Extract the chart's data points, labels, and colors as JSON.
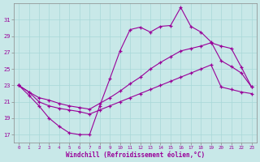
{
  "xlabel": "Windchill (Refroidissement éolien,°C)",
  "background_color": "#c8e8e8",
  "grid_color": "#a8d8d8",
  "line_color": "#990099",
  "xlim": [
    -0.5,
    23.5
  ],
  "ylim": [
    16.0,
    33.0
  ],
  "yticks": [
    17,
    19,
    21,
    23,
    25,
    27,
    29,
    31
  ],
  "xticks": [
    0,
    1,
    2,
    3,
    4,
    5,
    6,
    7,
    8,
    9,
    10,
    11,
    12,
    13,
    14,
    15,
    16,
    17,
    18,
    19,
    20,
    21,
    22,
    23
  ],
  "line1_x": [
    0,
    1,
    2,
    3,
    4,
    5,
    6,
    7,
    8,
    9,
    10,
    11,
    12,
    13,
    14,
    15,
    16,
    17,
    18,
    19,
    20,
    21,
    22,
    23
  ],
  "line1_y": [
    23.0,
    21.8,
    20.5,
    19.0,
    18.0,
    17.2,
    17.0,
    17.0,
    20.5,
    23.8,
    27.2,
    29.8,
    30.1,
    29.5,
    30.2,
    30.3,
    32.5,
    30.2,
    29.5,
    28.3,
    26.0,
    25.3,
    24.5,
    22.8
  ],
  "line2_x": [
    0,
    1,
    2,
    3,
    4,
    5,
    6,
    7,
    8,
    9,
    10,
    11,
    12,
    13,
    14,
    15,
    16,
    17,
    18,
    19,
    20,
    21,
    22,
    23
  ],
  "line2_y": [
    23.0,
    22.2,
    21.5,
    21.2,
    20.8,
    20.5,
    20.3,
    20.1,
    20.8,
    21.5,
    22.3,
    23.2,
    24.0,
    25.0,
    25.8,
    26.5,
    27.2,
    27.5,
    27.8,
    28.2,
    27.8,
    27.5,
    25.2,
    22.8
  ],
  "line3_x": [
    0,
    1,
    2,
    3,
    4,
    5,
    6,
    7,
    8,
    9,
    10,
    11,
    12,
    13,
    14,
    15,
    16,
    17,
    18,
    19,
    20,
    21,
    22,
    23
  ],
  "line3_y": [
    23.0,
    22.2,
    21.0,
    20.5,
    20.2,
    20.0,
    19.8,
    19.5,
    20.0,
    20.5,
    21.0,
    21.5,
    22.0,
    22.5,
    23.0,
    23.5,
    24.0,
    24.5,
    25.0,
    25.5,
    22.8,
    22.5,
    22.2,
    22.0
  ]
}
